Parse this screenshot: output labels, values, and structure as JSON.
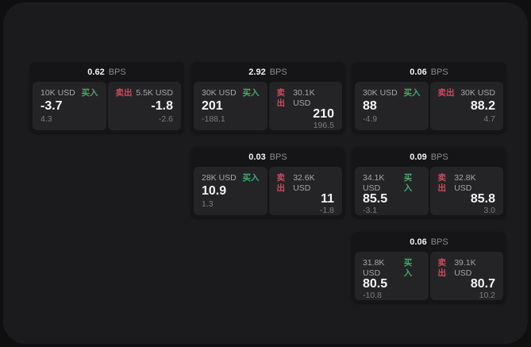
{
  "labels": {
    "buy": "买入",
    "sell": "卖出",
    "bps_unit": "BPS"
  },
  "colors": {
    "buy_green": "#41ab6a",
    "sell_red": "#cb4b5c",
    "outer_background": "#0f0f10",
    "panel_background": "#1b1b1d",
    "card_background": "#151517",
    "tile_background": "#242427"
  },
  "cards": [
    {
      "bps": "0.62",
      "buy": {
        "size": "10K USD",
        "value": "-3.7",
        "sub": "4.3"
      },
      "sell": {
        "size": "5.5K USD",
        "value": "-1.8",
        "sub": "-2.6"
      }
    },
    {
      "bps": "2.92",
      "buy": {
        "size": "30K USD",
        "value": "201",
        "sub": "-188.1"
      },
      "sell": {
        "size": "30.1K USD",
        "value": "210",
        "sub": "196.5"
      }
    },
    {
      "bps": "0.06",
      "buy": {
        "size": "30K USD",
        "value": "88",
        "sub": "-4.9"
      },
      "sell": {
        "size": "30K USD",
        "value": "88.2",
        "sub": "4.7"
      }
    },
    {
      "bps": "0.03",
      "buy": {
        "size": "28K USD",
        "value": "10.9",
        "sub": "1.3"
      },
      "sell": {
        "size": "32.6K USD",
        "value": "11",
        "sub": "-1.8"
      }
    },
    {
      "bps": "0.09",
      "buy": {
        "size": "34.1K USD",
        "value": "85.5",
        "sub": "-3.1"
      },
      "sell": {
        "size": "32.8K USD",
        "value": "85.8",
        "sub": "3.0"
      }
    },
    {
      "bps": "0.06",
      "buy": {
        "size": "31.8K USD",
        "value": "80.5",
        "sub": "-10.8"
      },
      "sell": {
        "size": "39.1K USD",
        "value": "80.7",
        "sub": "10.2"
      }
    }
  ]
}
